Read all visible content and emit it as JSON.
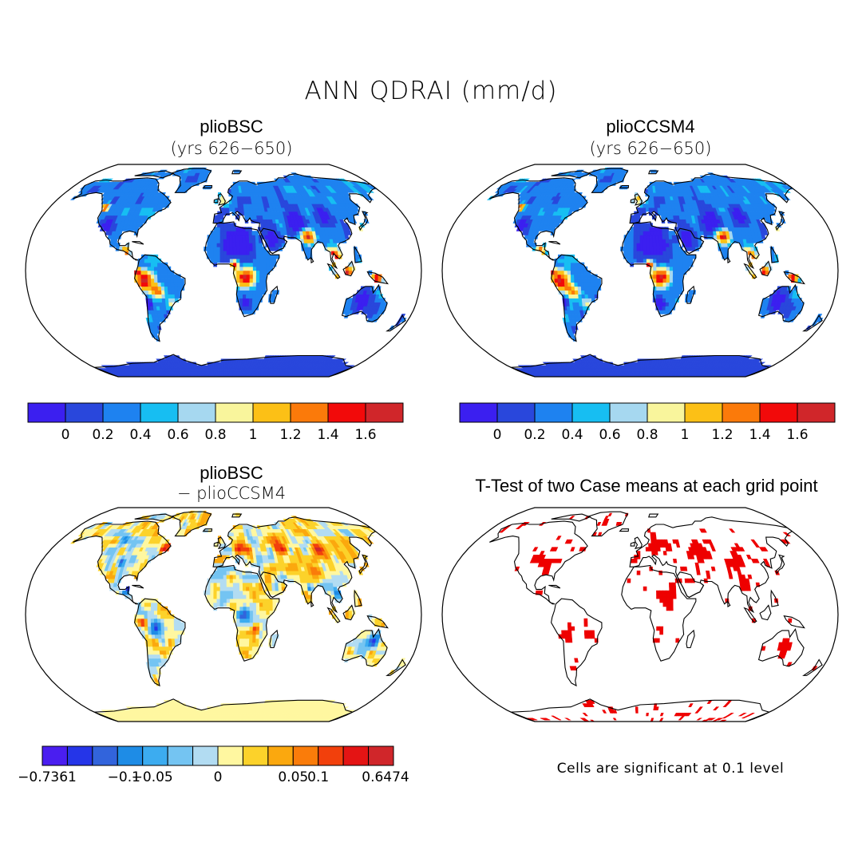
{
  "figure": {
    "title": "ANN QDRAI (mm/d)",
    "panels": [
      {
        "id": "plioBSC",
        "title": "plioBSC",
        "subtitle": "(yrs 626−650)",
        "colorbar": {
          "colors": [
            "#3b1ff0",
            "#2947dc",
            "#1e82f0",
            "#17bef2",
            "#a6d8f0",
            "#f9f59c",
            "#fcc016",
            "#fb7a0a",
            "#f20a0a",
            "#d0262a"
          ],
          "tick_labels": [
            "0",
            "0.2",
            "0.4",
            "0.6",
            "0.8",
            "1",
            "1.2",
            "1.4",
            "1.6"
          ]
        }
      },
      {
        "id": "plioCCSM4",
        "title": "plioCCSM4",
        "subtitle": "(yrs 626−650)",
        "colorbar": {
          "colors": [
            "#3b1ff0",
            "#2947dc",
            "#1e82f0",
            "#17bef2",
            "#a6d8f0",
            "#f9f59c",
            "#fcc016",
            "#fb7a0a",
            "#f20a0a",
            "#d0262a"
          ],
          "tick_labels": [
            "0",
            "0.2",
            "0.4",
            "0.6",
            "0.8",
            "1",
            "1.2",
            "1.4",
            "1.6"
          ]
        }
      },
      {
        "id": "difference",
        "title": "plioBSC",
        "subtitle": "− plioCCSM4",
        "colorbar": {
          "colors": [
            "#4a1ef0",
            "#2535e8",
            "#3264dc",
            "#1e8ce6",
            "#3cacf0",
            "#74c4f2",
            "#b2dcf2",
            "#fff7a0",
            "#fcd22a",
            "#fba80e",
            "#fa7c0a",
            "#f2400c",
            "#e41414",
            "#d0262a"
          ],
          "tick_labels": [
            "−0.7361",
            "−0.1",
            "−0.05",
            "0",
            "0.05",
            "0.1",
            "0.6474"
          ]
        }
      },
      {
        "id": "ttest",
        "title": "T-Test of two Case means at each grid point",
        "note": "Cells are significant at 0.1 level",
        "significant_color": "#ee0000"
      }
    ]
  }
}
